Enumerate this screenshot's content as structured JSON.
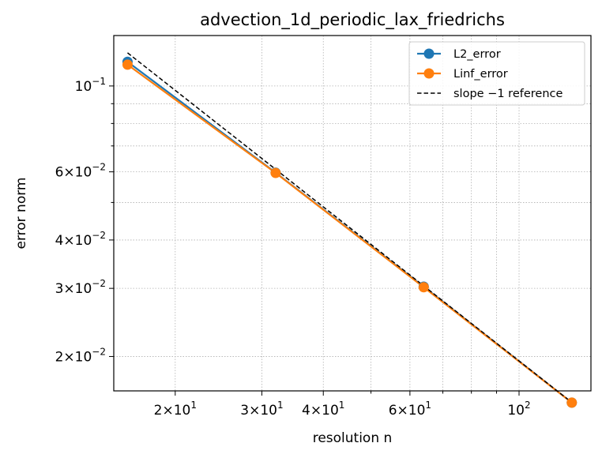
{
  "chart_data": {
    "type": "line",
    "title": "advection_1d_periodic_lax_friedrichs",
    "xlabel": "resolution n",
    "ylabel": "error norm",
    "xscale": "log",
    "yscale": "log",
    "xlim": [
      15.0,
      140.0
    ],
    "ylim": [
      0.0163,
      0.135
    ],
    "grid": true,
    "grid_style": "dotted",
    "legend_position": "top-right",
    "x_ticks": [
      {
        "value": 20,
        "mantissa": "2",
        "exponent": "1"
      },
      {
        "value": 30,
        "mantissa": "3",
        "exponent": "1"
      },
      {
        "value": 40,
        "mantissa": "4",
        "exponent": "1"
      },
      {
        "value": 60,
        "mantissa": "6",
        "exponent": "1"
      },
      {
        "value": 100,
        "mantissa": "",
        "exponent": "2"
      }
    ],
    "x_minor_ticks": [
      50,
      70,
      80,
      90
    ],
    "y_ticks": [
      {
        "value": 0.02,
        "mantissa": "2",
        "exponent": "−2"
      },
      {
        "value": 0.03,
        "mantissa": "3",
        "exponent": "−2"
      },
      {
        "value": 0.04,
        "mantissa": "4",
        "exponent": "−2"
      },
      {
        "value": 0.06,
        "mantissa": "6",
        "exponent": "−2"
      },
      {
        "value": 0.1,
        "mantissa": "",
        "exponent": "−1"
      }
    ],
    "y_minor_ticks": [
      0.05,
      0.07,
      0.08,
      0.09
    ],
    "series": [
      {
        "name": "L2_error",
        "color": "#1f77b4",
        "style": "solid",
        "marker": "circle",
        "x": [
          16,
          32,
          64,
          128
        ],
        "y": [
          0.1155,
          0.0597,
          0.0303,
          0.0152
        ]
      },
      {
        "name": "Linf_error",
        "color": "#ff7f0e",
        "style": "solid",
        "marker": "circle",
        "x": [
          16,
          32,
          64,
          128
        ],
        "y": [
          0.1135,
          0.0596,
          0.0302,
          0.0152
        ]
      },
      {
        "name": "slope −1 reference",
        "color": "#000000",
        "style": "dashed",
        "marker": "none",
        "x": [
          16,
          128
        ],
        "y": [
          0.1218,
          0.01522
        ]
      }
    ]
  }
}
